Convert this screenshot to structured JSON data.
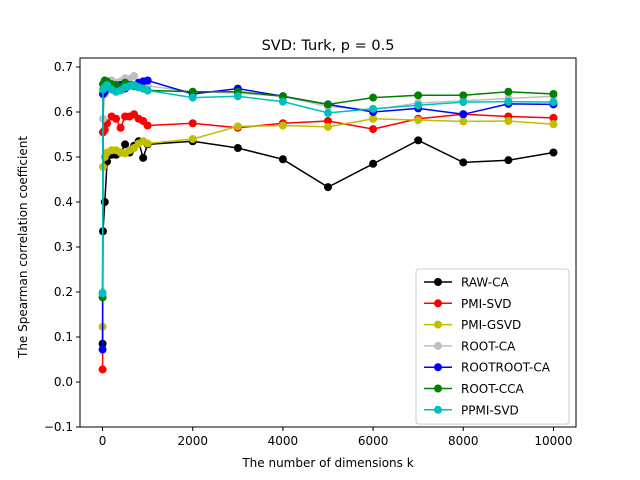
{
  "chart_data": {
    "type": "line",
    "title": "SVD: Turk, p = 0.5",
    "xlabel": "The number of dimensions k",
    "ylabel": "The Spearman correlation coefficient",
    "xlim": [
      -500,
      10500
    ],
    "ylim": [
      -0.1,
      0.72
    ],
    "xticks": [
      0,
      2000,
      4000,
      6000,
      8000,
      10000
    ],
    "xtick_labels": [
      "0",
      "2000",
      "4000",
      "6000",
      "8000",
      "10000"
    ],
    "yticks": [
      -0.1,
      0.0,
      0.1,
      0.2,
      0.3,
      0.4,
      0.5,
      0.6,
      0.7
    ],
    "ytick_labels": [
      "−0.1",
      "0.0",
      "0.1",
      "0.2",
      "0.3",
      "0.4",
      "0.5",
      "0.6",
      "0.7"
    ],
    "grid": false,
    "legend_position": "lower-right",
    "x": [
      1,
      10,
      50,
      100,
      200,
      300,
      400,
      500,
      600,
      700,
      800,
      900,
      1000,
      2000,
      3000,
      4000,
      5000,
      6000,
      7000,
      8000,
      9000,
      10000
    ],
    "series": [
      {
        "name": "RAW-CA",
        "color": "#000000",
        "values": [
          0.085,
          0.335,
          0.4,
          0.49,
          0.505,
          0.505,
          0.51,
          0.528,
          0.51,
          0.525,
          0.535,
          0.498,
          0.528,
          0.535,
          0.52,
          0.495,
          0.433,
          0.485,
          0.537,
          0.488,
          0.493,
          0.51
        ]
      },
      {
        "name": "PMI-SVD",
        "color": "#ff0000",
        "values": [
          0.028,
          0.555,
          0.56,
          0.575,
          0.59,
          0.585,
          0.565,
          0.59,
          0.59,
          0.595,
          0.585,
          0.58,
          0.57,
          0.575,
          0.565,
          0.575,
          0.58,
          0.562,
          0.585,
          0.595,
          0.59,
          0.587
        ]
      },
      {
        "name": "PMI-GSVD",
        "color": "#bfbf00",
        "values": [
          0.123,
          0.478,
          0.5,
          0.51,
          0.515,
          0.515,
          0.51,
          0.508,
          0.515,
          0.52,
          0.53,
          0.535,
          0.53,
          0.54,
          0.568,
          0.57,
          0.567,
          0.585,
          0.582,
          0.579,
          0.58,
          0.573
        ]
      },
      {
        "name": "ROOT-CA",
        "color": "#bfbfbf",
        "values": [
          0.2,
          0.585,
          0.64,
          0.66,
          0.67,
          0.665,
          0.668,
          0.675,
          0.673,
          0.68,
          0.665,
          0.66,
          0.658,
          0.645,
          0.642,
          0.635,
          0.612,
          0.605,
          0.62,
          0.625,
          0.63,
          0.635
        ]
      },
      {
        "name": "ROOTROOT-CA",
        "color": "#0000ff",
        "values": [
          0.072,
          0.64,
          0.645,
          0.665,
          0.66,
          0.655,
          0.66,
          0.652,
          0.66,
          0.658,
          0.665,
          0.668,
          0.67,
          0.64,
          0.652,
          0.635,
          0.617,
          0.6,
          0.608,
          0.595,
          0.618,
          0.617
        ]
      },
      {
        "name": "ROOT-CCA",
        "color": "#008000",
        "values": [
          0.188,
          0.662,
          0.67,
          0.668,
          0.662,
          0.66,
          0.655,
          0.665,
          0.66,
          0.658,
          0.655,
          0.652,
          0.648,
          0.645,
          0.645,
          0.635,
          0.617,
          0.632,
          0.637,
          0.637,
          0.645,
          0.64
        ]
      },
      {
        "name": "PPMI-SVD",
        "color": "#00bfbf",
        "values": [
          0.197,
          0.65,
          0.655,
          0.66,
          0.65,
          0.645,
          0.648,
          0.655,
          0.658,
          0.66,
          0.655,
          0.652,
          0.648,
          0.632,
          0.635,
          0.623,
          0.598,
          0.607,
          0.615,
          0.622,
          0.623,
          0.622
        ]
      }
    ]
  }
}
